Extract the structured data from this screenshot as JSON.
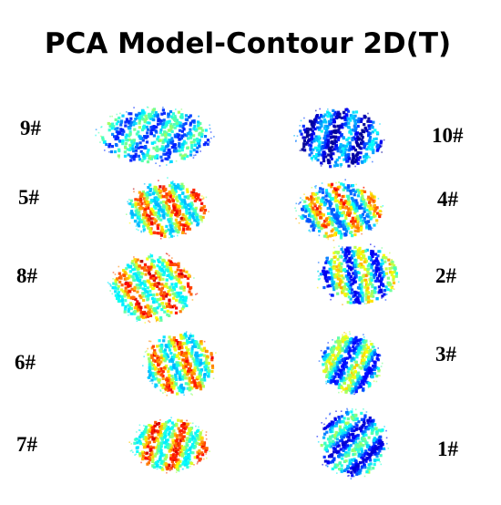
{
  "title": "PCA Model-Contour 2D(T)",
  "left_labels": [
    "9#",
    "5#",
    "8#",
    "6#",
    "7#"
  ],
  "right_labels": [
    "10#",
    "4#",
    "2#",
    "3#",
    "1#"
  ]
}
